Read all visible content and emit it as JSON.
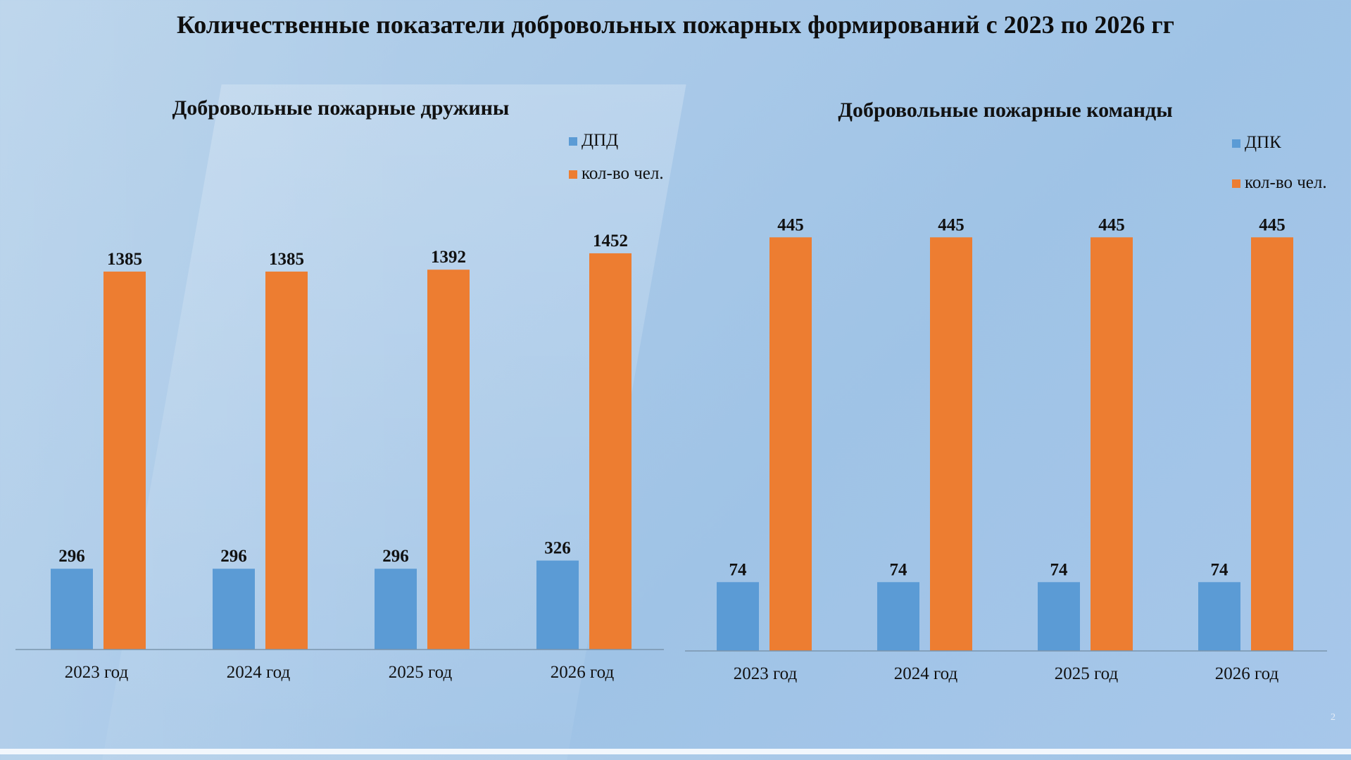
{
  "page": {
    "title": "Количественные показатели добровольных пожарных формирований с 2023 по 2026 гг",
    "page_number": "2"
  },
  "colors": {
    "series1": "#5b9bd5",
    "series2": "#ed7d31",
    "axis": "#7a95ad"
  },
  "chart_data": [
    {
      "type": "bar",
      "title": "Добровольные пожарные дружины",
      "categories": [
        "2023 год",
        "2024 год",
        "2025 год",
        "2026 год"
      ],
      "series": [
        {
          "name": "ДПД",
          "values": [
            296,
            296,
            296,
            326
          ]
        },
        {
          "name": "кол-во чел.",
          "values": [
            1385,
            1385,
            1392,
            1452
          ]
        }
      ],
      "ylim": [
        0,
        1800
      ],
      "grid": false,
      "legend": "top-right"
    },
    {
      "type": "bar",
      "title": "Добровольные пожарные команды",
      "categories": [
        "2023 год",
        "2024 год",
        "2025 год",
        "2026 год"
      ],
      "series": [
        {
          "name": "ДПК",
          "values": [
            74,
            74,
            74,
            74
          ]
        },
        {
          "name": "кол-во чел.",
          "values": [
            445,
            445,
            445,
            445
          ]
        }
      ],
      "ylim": [
        0,
        530
      ],
      "grid": false,
      "legend": "top-right"
    }
  ]
}
